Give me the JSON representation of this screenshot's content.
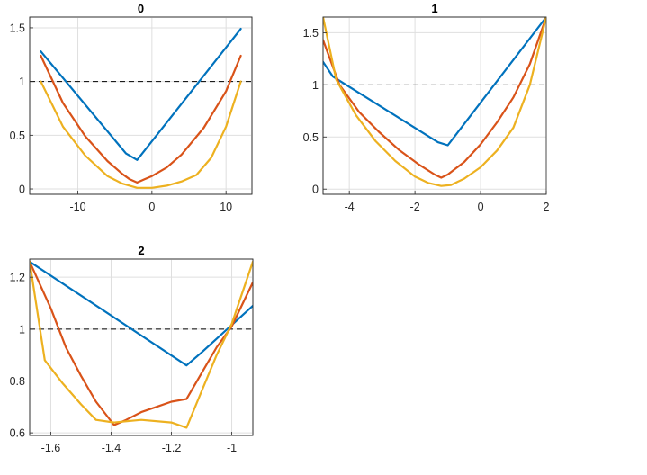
{
  "colors": {
    "series": [
      "#0072BD",
      "#D95319",
      "#EDB120"
    ],
    "reference": "#000000"
  },
  "chart_data": [
    {
      "type": "line",
      "title": "0",
      "xlabel": "",
      "ylabel": "",
      "xlim": [
        -16.5,
        13.5
      ],
      "ylim": [
        -0.05,
        1.6
      ],
      "xticks": [
        -10,
        0,
        10
      ],
      "xtick_labels": [
        "-10",
        "0",
        "10"
      ],
      "yticks": [
        0,
        0.5,
        1,
        1.5
      ],
      "ytick_labels": [
        "0",
        "0.5",
        "1",
        "1.5"
      ],
      "grid": true,
      "reference_y": 1,
      "series": [
        {
          "x": [
            -15,
            -3.5,
            -2,
            12
          ],
          "values": [
            1.28,
            0.33,
            0.27,
            1.49
          ]
        },
        {
          "x": [
            -15,
            -12,
            -9,
            -6,
            -4,
            -3,
            -2,
            -1,
            0,
            2,
            4,
            7,
            10,
            12
          ],
          "values": [
            1.24,
            0.8,
            0.49,
            0.26,
            0.14,
            0.09,
            0.06,
            0.09,
            0.12,
            0.2,
            0.32,
            0.57,
            0.91,
            1.24
          ]
        },
        {
          "x": [
            -15,
            -12,
            -9,
            -6,
            -4,
            -2,
            0,
            2,
            4,
            6,
            8,
            10,
            12
          ],
          "values": [
            1.0,
            0.58,
            0.31,
            0.12,
            0.05,
            0.01,
            0.01,
            0.03,
            0.07,
            0.13,
            0.29,
            0.58,
            1.0
          ]
        }
      ]
    },
    {
      "type": "line",
      "title": "1",
      "xlabel": "",
      "ylabel": "",
      "xlim": [
        -4.8,
        2.0
      ],
      "ylim": [
        -0.05,
        1.65
      ],
      "xticks": [
        -4,
        -2,
        0,
        2
      ],
      "xtick_labels": [
        "-4",
        "-2",
        "0",
        "2"
      ],
      "yticks": [
        0,
        0.5,
        1,
        1.5
      ],
      "ytick_labels": [
        "0",
        "0.5",
        "1",
        "1.5"
      ],
      "grid": true,
      "reference_y": 1,
      "series": [
        {
          "x": [
            -4.8,
            -4.5,
            -1.3,
            -1.0,
            2.0
          ],
          "values": [
            1.22,
            1.08,
            0.45,
            0.42,
            1.65
          ]
        },
        {
          "x": [
            -4.8,
            -4.3,
            -3.7,
            -3.1,
            -2.5,
            -1.9,
            -1.4,
            -1.2,
            -1.0,
            -0.5,
            0.0,
            0.5,
            1.0,
            1.5,
            2.0
          ],
          "values": [
            1.43,
            1.0,
            0.74,
            0.55,
            0.38,
            0.24,
            0.14,
            0.11,
            0.14,
            0.26,
            0.43,
            0.64,
            0.88,
            1.2,
            1.65
          ]
        },
        {
          "x": [
            -4.8,
            -4.4,
            -3.8,
            -3.2,
            -2.6,
            -2.0,
            -1.6,
            -1.2,
            -0.9,
            -0.5,
            0.0,
            0.5,
            1.0,
            1.5,
            2.0
          ],
          "values": [
            1.65,
            1.05,
            0.71,
            0.46,
            0.27,
            0.12,
            0.06,
            0.03,
            0.04,
            0.1,
            0.21,
            0.37,
            0.59,
            1.0,
            1.65
          ]
        }
      ]
    },
    {
      "type": "line",
      "title": "2",
      "xlabel": "",
      "ylabel": "",
      "xlim": [
        -1.67,
        -0.93
      ],
      "ylim": [
        0.59,
        1.27
      ],
      "xticks": [
        -1.6,
        -1.4,
        -1.2,
        -1.0
      ],
      "xtick_labels": [
        "-1.6",
        "-1.4",
        "-1.2",
        "-1"
      ],
      "yticks": [
        0.6,
        0.8,
        1.0,
        1.2
      ],
      "ytick_labels": [
        "0.6",
        "0.8",
        "1",
        "1.2"
      ],
      "grid": true,
      "reference_y": 1,
      "series": [
        {
          "x": [
            -1.67,
            -1.15,
            -1.1,
            -0.93
          ],
          "values": [
            1.26,
            0.86,
            0.91,
            1.09
          ]
        },
        {
          "x": [
            -1.67,
            -1.6,
            -1.55,
            -1.5,
            -1.45,
            -1.39,
            -1.35,
            -1.3,
            -1.25,
            -1.2,
            -1.15,
            -1.1,
            -1.05,
            -1.0,
            -0.93
          ],
          "values": [
            1.26,
            1.08,
            0.93,
            0.82,
            0.72,
            0.63,
            0.65,
            0.68,
            0.7,
            0.72,
            0.73,
            0.83,
            0.93,
            1.01,
            1.18
          ]
        },
        {
          "x": [
            -1.67,
            -1.62,
            -1.56,
            -1.5,
            -1.45,
            -1.39,
            -1.3,
            -1.2,
            -1.15,
            -1.1,
            -1.05,
            -1.0,
            -0.93
          ],
          "values": [
            1.26,
            0.88,
            0.79,
            0.71,
            0.65,
            0.64,
            0.65,
            0.64,
            0.62,
            0.76,
            0.9,
            1.02,
            1.26
          ]
        }
      ]
    }
  ]
}
